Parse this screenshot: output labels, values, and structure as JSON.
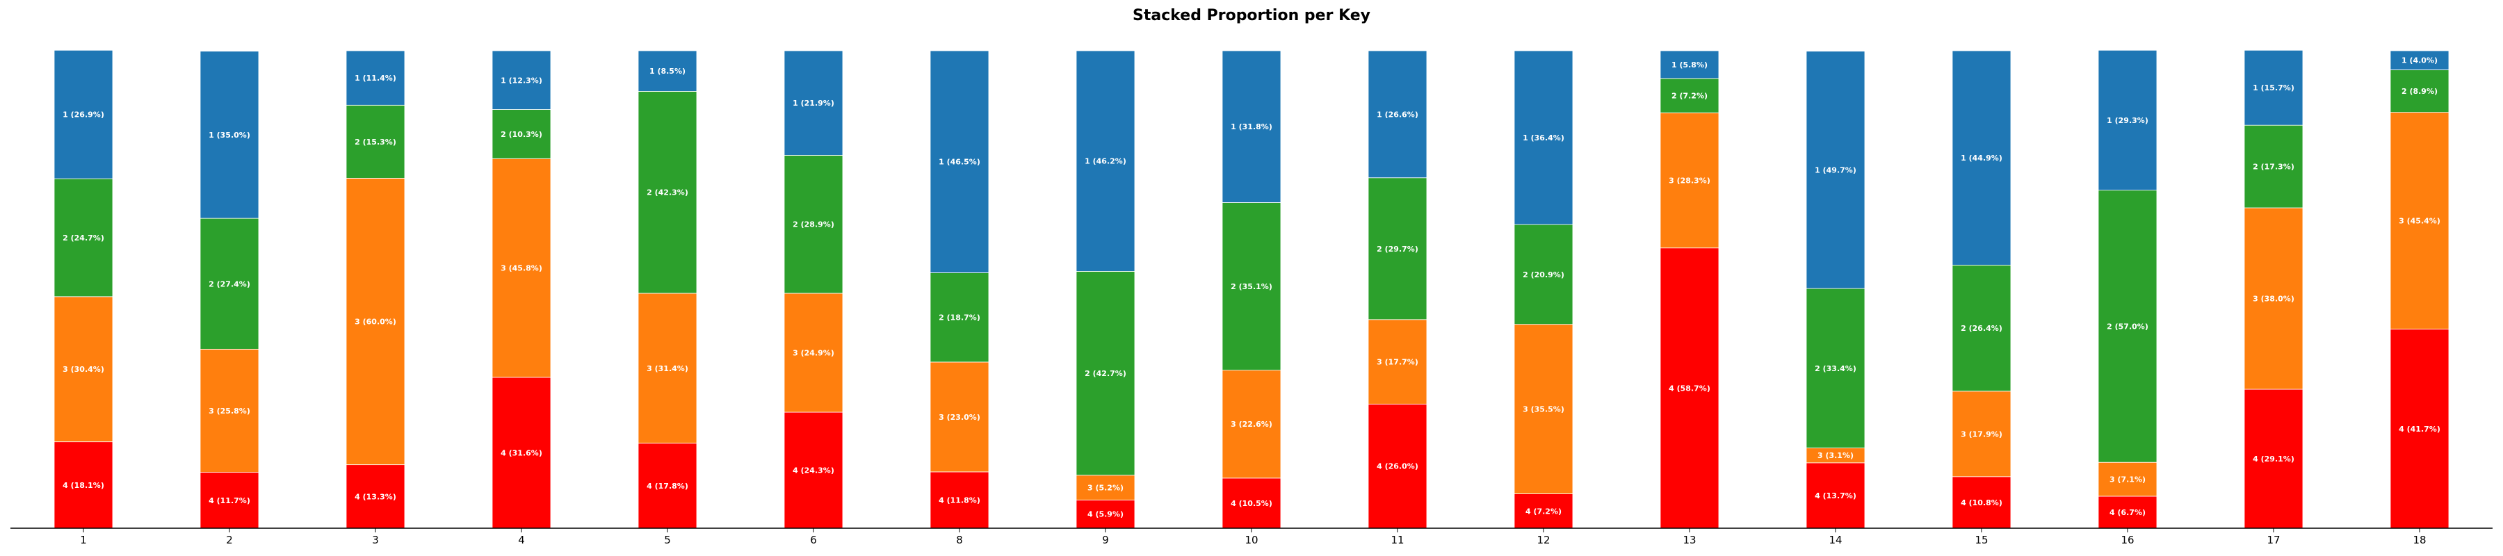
{
  "chart_data": {
    "type": "bar",
    "stacked": true,
    "title": "Stacked Proportion per Key",
    "xlabel": "",
    "ylabel": "",
    "ylim": [
      0,
      100
    ],
    "grid": false,
    "categories": [
      "1",
      "2",
      "3",
      "4",
      "5",
      "6",
      "8",
      "9",
      "10",
      "11",
      "12",
      "13",
      "14",
      "15",
      "16",
      "17",
      "18"
    ],
    "series": [
      {
        "name": "4",
        "color": "#ff0000",
        "values": [
          18.1,
          11.7,
          13.3,
          31.6,
          17.8,
          24.3,
          11.8,
          5.9,
          10.5,
          26.0,
          7.2,
          58.7,
          13.7,
          10.8,
          6.7,
          29.1,
          41.7
        ]
      },
      {
        "name": "3",
        "color": "#ff7f0e",
        "values": [
          30.4,
          25.8,
          60.0,
          45.8,
          31.4,
          24.9,
          23.0,
          5.2,
          22.6,
          17.7,
          35.5,
          28.3,
          3.1,
          17.9,
          7.1,
          38.0,
          45.4
        ]
      },
      {
        "name": "2",
        "color": "#2ca02c",
        "values": [
          24.7,
          27.4,
          15.3,
          10.3,
          42.3,
          28.9,
          18.7,
          42.7,
          35.1,
          29.7,
          20.9,
          7.2,
          33.4,
          26.4,
          57.0,
          17.3,
          8.9
        ]
      },
      {
        "name": "1",
        "color": "#1f77b4",
        "values": [
          26.9,
          35.0,
          11.4,
          12.3,
          8.5,
          21.9,
          46.5,
          46.2,
          31.8,
          26.6,
          36.4,
          5.8,
          49.7,
          44.9,
          29.3,
          15.7,
          4.0
        ]
      }
    ]
  }
}
